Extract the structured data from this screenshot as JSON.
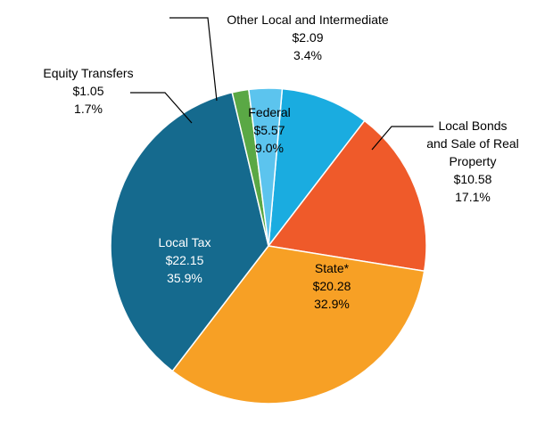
{
  "chart_data": {
    "type": "pie",
    "title": "",
    "slices": [
      {
        "name": "Federal",
        "value": 5.57,
        "amount": "$5.57",
        "percent": "9.0%",
        "color": "#1aace0",
        "label_color": "#000000"
      },
      {
        "name": "Local Bonds and Sale of Real Property",
        "value": 10.58,
        "amount": "$10.58",
        "percent": "17.1%",
        "color": "#ef5a2a",
        "label_color": "#000000"
      },
      {
        "name": "State*",
        "value": 20.28,
        "amount": "$20.28",
        "percent": "32.9%",
        "color": "#f7a025",
        "label_color": "#000000"
      },
      {
        "name": "Local Tax",
        "value": 22.15,
        "amount": "$22.15",
        "percent": "35.9%",
        "color": "#156a8e",
        "label_color": "#ffffff"
      },
      {
        "name": "Equity Transfers",
        "value": 1.05,
        "amount": "$1.05",
        "percent": "1.7%",
        "color": "#5aa845",
        "label_color": "#000000"
      },
      {
        "name": "Other Local and Intermediate",
        "value": 2.09,
        "amount": "$2.09",
        "percent": "3.4%",
        "color": "#5cc4ee",
        "label_color": "#000000"
      }
    ],
    "labels": {
      "federal": {
        "lines": [
          "Federal",
          "$5.57",
          "9.0%"
        ]
      },
      "bonds": {
        "lines": [
          "Local Bonds",
          "and Sale of Real",
          "Property",
          "$10.58",
          "17.1%"
        ]
      },
      "state": {
        "lines": [
          "State*",
          "$20.28",
          "32.9%"
        ]
      },
      "localtax": {
        "lines": [
          "Local Tax",
          "$22.15",
          "35.9%"
        ]
      },
      "equity": {
        "lines": [
          "Equity Transfers",
          "$1.05",
          "1.7%"
        ]
      },
      "other": {
        "lines": [
          "Other Local and Intermediate",
          "$2.09",
          "3.4%"
        ]
      }
    }
  }
}
